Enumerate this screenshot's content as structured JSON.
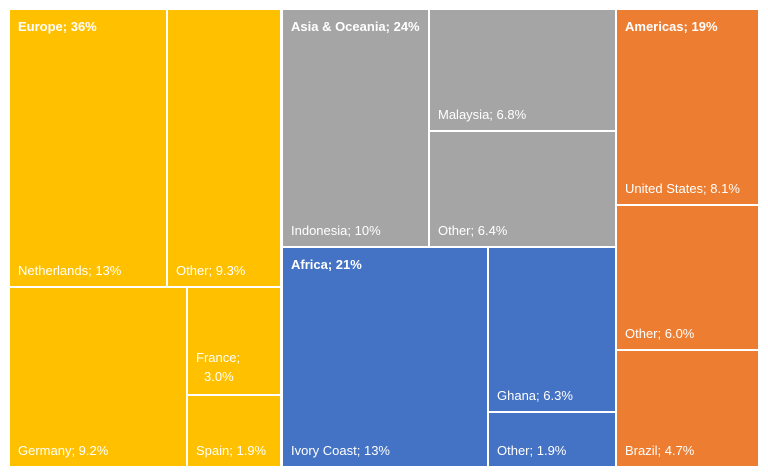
{
  "chart_data": {
    "type": "treemap",
    "groups": [
      {
        "name": "Europe",
        "label": "Europe; 36%",
        "value": 36,
        "color": "#FFC000",
        "items": [
          {
            "name": "Netherlands",
            "label": "Netherlands; 13%",
            "value": 13
          },
          {
            "name": "Other",
            "label": "Other; 9.3%",
            "value": 9.3
          },
          {
            "name": "Germany",
            "label": "Germany; 9.2%",
            "value": 9.2
          },
          {
            "name": "France",
            "label": "France;",
            "label2": "3.0%",
            "value": 3.0
          },
          {
            "name": "Spain",
            "label": "Spain; 1.9%",
            "value": 1.9
          }
        ]
      },
      {
        "name": "Asia & Oceania",
        "label": "Asia & Oceania; 24%",
        "value": 24,
        "color": "#A5A5A5",
        "items": [
          {
            "name": "Indonesia",
            "label": "Indonesia; 10%",
            "value": 10
          },
          {
            "name": "Malaysia",
            "label": "Malaysia; 6.8%",
            "value": 6.8
          },
          {
            "name": "Other",
            "label": "Other; 6.4%",
            "value": 6.4
          }
        ]
      },
      {
        "name": "Africa",
        "label": "Africa; 21%",
        "value": 21,
        "color": "#4472C4",
        "items": [
          {
            "name": "Ivory Coast",
            "label": "Ivory Coast; 13%",
            "value": 13
          },
          {
            "name": "Ghana",
            "label": "Ghana; 6.3%",
            "value": 6.3
          },
          {
            "name": "Other",
            "label": "Other; 1.9%",
            "value": 1.9
          }
        ]
      },
      {
        "name": "Americas",
        "label": "Americas; 19%",
        "value": 19,
        "color": "#ED7D31",
        "items": [
          {
            "name": "United States",
            "label": "United States; 8.1%",
            "value": 8.1
          },
          {
            "name": "Other",
            "label": "Other; 6.0%",
            "value": 6.0
          },
          {
            "name": "Brazil",
            "label": "Brazil; 4.7%",
            "value": 4.7
          }
        ]
      }
    ]
  }
}
